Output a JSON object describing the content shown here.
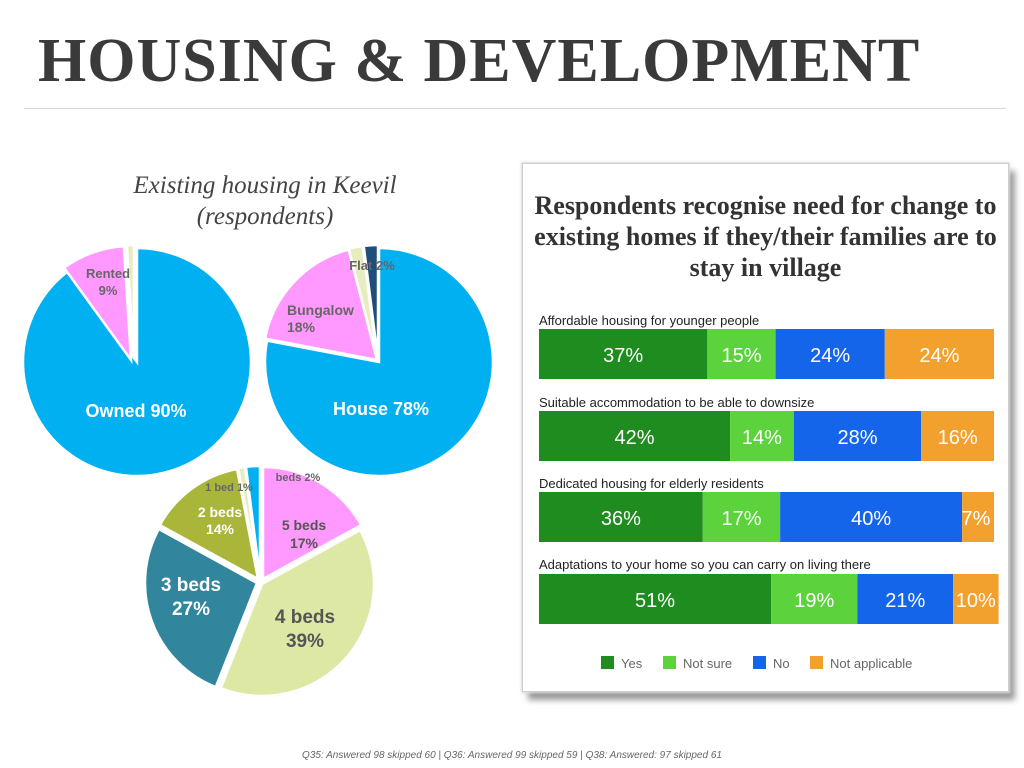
{
  "title": "HOUSING & DEVELOPMENT",
  "footer": "Q35: Answered 98 skipped 60 | Q36: Answered 99 skipped 59 | Q38: Answered: 97 skipped 61",
  "colors": {
    "pie_cyan": "#00b0f0",
    "pie_pink": "#ff99ff",
    "pie_olive": "#a9b63a",
    "pie_teal": "#31859c",
    "pie_pale": "#dde8a4",
    "pie_light": "#e8edbf",
    "pie_navy": "#1f4e79",
    "yes": "#1e8c1e",
    "not_sure": "#5cd33c",
    "no": "#1565ea",
    "not_applicable": "#f2a12e"
  },
  "chart_data": [
    {
      "type": "pie",
      "title": "Existing housing in Keevil (respondents)",
      "slices": [
        {
          "label": "Owned",
          "value": 90,
          "display": "Owned 90%"
        },
        {
          "label": "Rented",
          "value": 9,
          "display": "Rented 9%"
        },
        {
          "label": "",
          "value": 1,
          "display": ""
        }
      ]
    },
    {
      "type": "pie",
      "slices": [
        {
          "label": "House",
          "value": 78,
          "display": "House 78%"
        },
        {
          "label": "Bungalow",
          "value": 18,
          "display": "Bungalow 18%"
        },
        {
          "label": "",
          "value": 2,
          "display": ""
        },
        {
          "label": "Flat",
          "value": 2,
          "display": "Flat 2%"
        }
      ]
    },
    {
      "type": "pie",
      "slices": [
        {
          "label": "5 beds",
          "value": 17,
          "display": "5 beds 17%"
        },
        {
          "label": "4 beds",
          "value": 39,
          "display": "4 beds 39%"
        },
        {
          "label": "3 beds",
          "value": 27,
          "display": "3 beds 27%"
        },
        {
          "label": "2 beds",
          "value": 14,
          "display": "2 beds 14%"
        },
        {
          "label": "1 bed",
          "value": 1,
          "display": "1 bed 1%"
        },
        {
          "label": "beds",
          "value": 2,
          "display": "beds 2%"
        }
      ]
    },
    {
      "type": "bar",
      "stacked": true,
      "orientation": "horizontal",
      "title": "Respondents recognise need for change to existing homes if they/their families are to stay in village",
      "categories": [
        "Affordable housing for younger people",
        "Suitable accommodation to be able to downsize",
        "Dedicated housing for elderly residents",
        "Adaptations to your home so you can carry on living there"
      ],
      "series": [
        {
          "name": "Yes",
          "values": [
            37,
            42,
            36,
            51
          ]
        },
        {
          "name": "Not sure",
          "values": [
            15,
            14,
            17,
            19
          ]
        },
        {
          "name": "No",
          "values": [
            24,
            28,
            40,
            21
          ]
        },
        {
          "name": "Not applicable",
          "values": [
            24,
            16,
            7,
            10
          ]
        }
      ],
      "xlim": [
        0,
        100
      ],
      "value_suffix": "%",
      "legend_position": "bottom"
    }
  ]
}
